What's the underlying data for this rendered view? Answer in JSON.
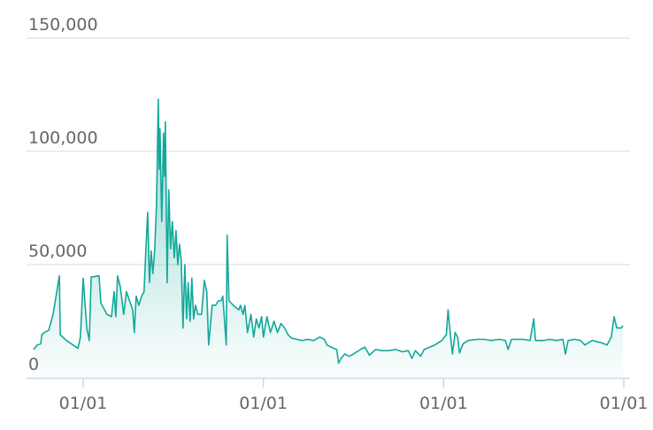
{
  "chart_data": {
    "type": "area",
    "title": "",
    "xlabel": "",
    "ylabel": "",
    "x_unit": "decimal year",
    "ylim": [
      0,
      150000
    ],
    "y_ticks": [
      {
        "value": 0,
        "label": "0"
      },
      {
        "value": 50000,
        "label": "50,000"
      },
      {
        "value": 100000,
        "label": "100,000"
      },
      {
        "value": 150000,
        "label": "150,000"
      }
    ],
    "x_ticks": [
      {
        "value": 2021,
        "label": "01/01"
      },
      {
        "value": 2022,
        "label": "01/01"
      },
      {
        "value": 2023,
        "label": "01/01"
      },
      {
        "value": 2024,
        "label": "01/01"
      }
    ],
    "grid": "horizontal",
    "colors": {
      "line": "#13a89a",
      "fill": "#13a89a",
      "grid": "#e6e6e6",
      "axis": "#ccd6eb"
    },
    "x": [
      2020.725,
      2020.745,
      2020.765,
      2020.77,
      2020.784,
      2020.809,
      2020.833,
      2020.868,
      2020.873,
      2020.907,
      2020.971,
      2020.985,
      2021.0,
      2021.02,
      2021.034,
      2021.044,
      2021.088,
      2021.098,
      2021.132,
      2021.157,
      2021.172,
      2021.181,
      2021.191,
      2021.206,
      2021.225,
      2021.24,
      2021.275,
      2021.284,
      2021.294,
      2021.309,
      2021.324,
      2021.338,
      2021.348,
      2021.358,
      2021.368,
      2021.377,
      2021.387,
      2021.397,
      2021.407,
      2021.417,
      2021.422,
      2021.426,
      2021.436,
      2021.446,
      2021.451,
      2021.456,
      2021.466,
      2021.475,
      2021.485,
      2021.495,
      2021.505,
      2021.515,
      2021.525,
      2021.534,
      2021.544,
      2021.554,
      2021.564,
      2021.574,
      2021.583,
      2021.593,
      2021.603,
      2021.613,
      2021.623,
      2021.637,
      2021.657,
      2021.672,
      2021.686,
      2021.696,
      2021.716,
      2021.735,
      2021.75,
      2021.765,
      2021.775,
      2021.794,
      2021.799,
      2021.809,
      2021.833,
      2021.863,
      2021.873,
      2021.887,
      2021.897,
      2021.912,
      2021.931,
      2021.946,
      2021.961,
      2021.975,
      2021.99,
      2022.0,
      2022.02,
      2022.039,
      2022.059,
      2022.078,
      2022.098,
      2022.118,
      2022.137,
      2022.157,
      2022.186,
      2022.216,
      2022.245,
      2022.279,
      2022.314,
      2022.338,
      2022.353,
      2022.377,
      2022.407,
      2022.417,
      2022.431,
      2022.451,
      2022.475,
      2022.5,
      2022.539,
      2022.564,
      2022.588,
      2022.623,
      2022.657,
      2022.696,
      2022.735,
      2022.77,
      2022.804,
      2022.824,
      2022.843,
      2022.873,
      2022.892,
      2022.922,
      2022.951,
      2022.99,
      2023.015,
      2023.025,
      2023.034,
      2023.049,
      2023.064,
      2023.078,
      2023.088,
      2023.108,
      2023.137,
      2023.186,
      2023.225,
      2023.265,
      2023.309,
      2023.343,
      2023.358,
      2023.377,
      2023.407,
      2023.441,
      2023.48,
      2023.5,
      2023.51,
      2023.554,
      2023.588,
      2023.627,
      2023.662,
      2023.676,
      2023.691,
      2023.725,
      2023.76,
      2023.784,
      2023.824,
      2023.873,
      2023.907,
      2023.931,
      2023.946,
      2023.961,
      2023.985,
      2023.995
    ],
    "y": [
      12500,
      14500,
      15000,
      19000,
      20000,
      21000,
      28000,
      45000,
      19000,
      16500,
      13000,
      18000,
      44000,
      22000,
      16500,
      44500,
      45000,
      33000,
      28000,
      27000,
      38000,
      27000,
      45000,
      40000,
      28000,
      38000,
      30000,
      20000,
      36000,
      32000,
      36000,
      38000,
      57000,
      73000,
      42000,
      56000,
      46000,
      57000,
      77000,
      123000,
      92000,
      110000,
      69000,
      108000,
      89000,
      113000,
      42000,
      83000,
      57000,
      69000,
      53000,
      65000,
      50000,
      59000,
      52000,
      22000,
      50000,
      26000,
      42000,
      25000,
      44000,
      26000,
      32000,
      28000,
      28000,
      43000,
      38000,
      14500,
      32000,
      32000,
      34000,
      34000,
      36000,
      14500,
      63000,
      34000,
      32000,
      30000,
      32000,
      28000,
      32000,
      20000,
      28000,
      18000,
      26000,
      22000,
      27000,
      18000,
      27000,
      20000,
      25000,
      20000,
      24000,
      22000,
      19000,
      17500,
      17000,
      16500,
      17000,
      16500,
      18000,
      17000,
      14500,
      13500,
      12500,
      6500,
      8500,
      10500,
      9500,
      10500,
      12500,
      13500,
      10000,
      12500,
      12000,
      12000,
      12500,
      11500,
      12000,
      8500,
      12000,
      9500,
      12500,
      13500,
      14500,
      16500,
      19000,
      30000,
      22000,
      10500,
      20000,
      18000,
      11000,
      15000,
      16500,
      17000,
      17000,
      16500,
      17000,
      16500,
      12500,
      17000,
      17000,
      17000,
      16500,
      26000,
      16500,
      16500,
      17000,
      16500,
      17000,
      10500,
      16500,
      17000,
      16500,
      14500,
      16500,
      15500,
      14500,
      18000,
      27000,
      22000,
      22000,
      23000
    ]
  }
}
